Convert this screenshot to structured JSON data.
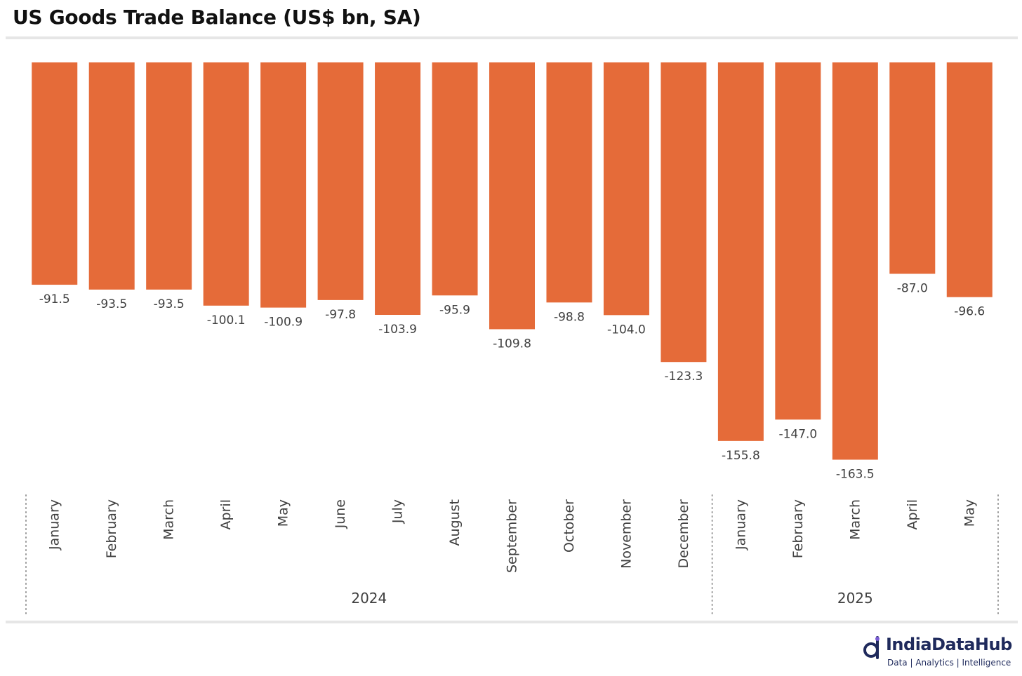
{
  "title": "US Goods Trade Balance (US$ bn, SA)",
  "colors": {
    "bar": "#E56B39",
    "label": "#404040",
    "rule": "#e6e6e6",
    "brand": "#1f2a5c",
    "brand_accent": "#7b5cd6"
  },
  "chart_data": {
    "type": "bar",
    "title": "US Goods Trade Balance (US$ bn, SA)",
    "categories": [
      "January",
      "February",
      "March",
      "April",
      "May",
      "June",
      "July",
      "August",
      "September",
      "October",
      "November",
      "December",
      "January",
      "February",
      "March",
      "April",
      "May"
    ],
    "groups": [
      {
        "label": "2024",
        "count": 12
      },
      {
        "label": "2025",
        "count": 5
      }
    ],
    "values": [
      -91.5,
      -93.5,
      -93.5,
      -100.1,
      -100.9,
      -97.8,
      -103.9,
      -95.9,
      -109.8,
      -98.8,
      -104.0,
      -123.3,
      -155.8,
      -147.0,
      -163.5,
      -87.0,
      -96.6
    ],
    "value_labels": [
      "-91.5",
      "-93.5",
      "-93.5",
      "-100.1",
      "-100.9",
      "-97.8",
      "-103.9",
      "-95.9",
      "-109.8",
      "-98.8",
      "-104.0",
      "-123.3",
      "-155.8",
      "-147.0",
      "-163.5",
      "-87.0",
      "-96.6"
    ],
    "ylim": [
      -170,
      0
    ],
    "grid": false,
    "legend": "none"
  },
  "brand": {
    "name": "IndiaDataHub",
    "tagline": "Data | Analytics | Intelligence"
  }
}
